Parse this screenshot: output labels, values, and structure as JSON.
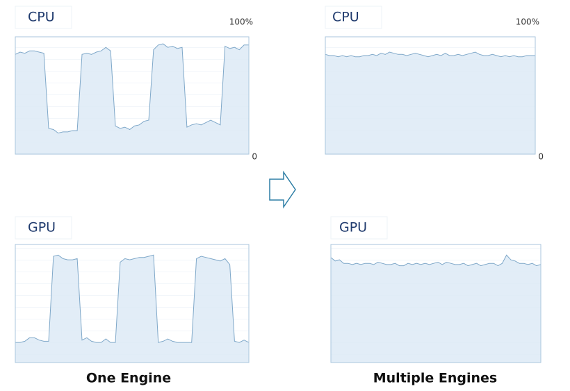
{
  "chart_data": [
    {
      "type": "area",
      "title": "CPU",
      "color": "#dbe9f5",
      "line_color": "#7fa8c9",
      "ylim": [
        0,
        100
      ],
      "yticks": [
        {
          "value": 100,
          "label": "100%"
        },
        0
      ],
      "values": [
        85,
        87,
        86,
        88,
        88,
        87,
        86,
        22,
        21,
        18,
        19,
        19,
        20,
        20,
        85,
        86,
        85,
        87,
        88,
        91,
        88,
        24,
        22,
        23,
        21,
        24,
        25,
        28,
        29,
        89,
        93,
        94,
        91,
        92,
        90,
        91,
        23,
        25,
        26,
        25,
        27,
        29,
        27,
        25,
        92,
        90,
        91,
        89,
        93,
        93
      ]
    },
    {
      "type": "area",
      "title": "CPU",
      "color": "#dbe9f5",
      "line_color": "#7fa8c9",
      "ylim": [
        0,
        100
      ],
      "yticks": [
        {
          "value": 100,
          "label": "100%"
        },
        0
      ],
      "values": [
        85,
        84,
        84,
        83,
        84,
        83,
        84,
        83,
        83,
        84,
        84,
        85,
        84,
        86,
        85,
        87,
        86,
        85,
        85,
        84,
        85,
        86,
        85,
        84,
        83,
        84,
        85,
        84,
        86,
        84,
        84,
        85,
        84,
        85,
        86,
        87,
        85,
        84,
        84,
        85,
        84,
        83,
        84,
        83,
        84,
        83,
        83,
        84,
        84,
        84
      ]
    },
    {
      "type": "area",
      "title": "GPU",
      "color": "#dbe9f5",
      "line_color": "#7fa8c9",
      "ylim": [
        0,
        100
      ],
      "values": [
        17,
        17,
        18,
        21,
        21,
        19,
        18,
        18,
        90,
        91,
        88,
        87,
        87,
        88,
        19,
        21,
        18,
        17,
        17,
        20,
        17,
        17,
        85,
        88,
        87,
        88,
        89,
        89,
        90,
        91,
        17,
        18,
        20,
        18,
        17,
        17,
        17,
        17,
        88,
        90,
        89,
        88,
        87,
        86,
        88,
        83,
        18,
        17,
        19,
        17
      ]
    },
    {
      "type": "area",
      "title": "GPU",
      "color": "#dbe9f5",
      "line_color": "#7fa8c9",
      "ylim": [
        0,
        100
      ],
      "values": [
        89,
        86,
        87,
        84,
        84,
        83,
        84,
        83,
        84,
        84,
        83,
        85,
        84,
        83,
        83,
        84,
        82,
        82,
        84,
        83,
        84,
        83,
        84,
        83,
        84,
        85,
        83,
        85,
        84,
        83,
        83,
        84,
        82,
        83,
        84,
        82,
        83,
        84,
        84,
        82,
        84,
        91,
        87,
        86,
        84,
        84,
        83,
        84,
        82,
        83
      ]
    }
  ],
  "captions": [
    "One Engine",
    "Multiple Engines"
  ]
}
